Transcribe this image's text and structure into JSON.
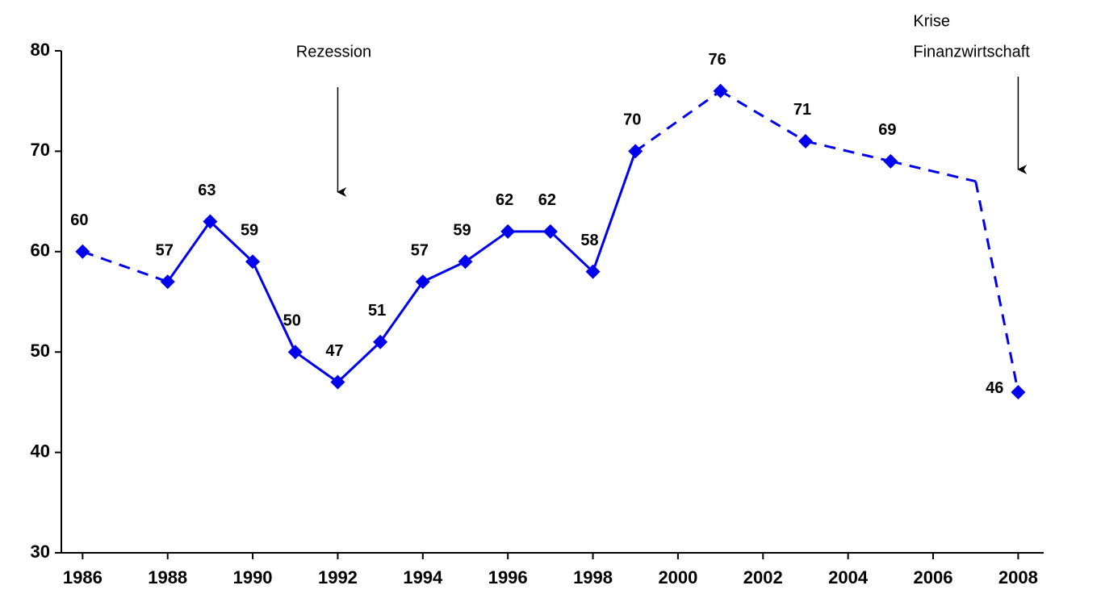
{
  "chart_data": {
    "type": "line",
    "x": [
      1986,
      1988,
      1989,
      1990,
      1991,
      1992,
      1993,
      1994,
      1995,
      1996,
      1997,
      1998,
      1999,
      2001,
      2003,
      2005,
      2007,
      2008
    ],
    "series": [
      {
        "color": "#0000ee",
        "values": [
          60,
          57,
          63,
          59,
          50,
          47,
          51,
          57,
          59,
          62,
          62,
          58,
          70,
          76,
          71,
          69,
          67,
          46
        ],
        "value_labels": [
          "60",
          "57",
          "63",
          "59",
          "50",
          "47",
          "51",
          "57",
          "59",
          "62",
          "62",
          "58",
          "70",
          "76",
          "71",
          "69",
          null,
          "46"
        ]
      }
    ],
    "xlim": [
      1985.5,
      2008.6
    ],
    "xticks": [
      1986,
      1988,
      1990,
      1992,
      1994,
      1996,
      1998,
      2000,
      2002,
      2004,
      2006,
      2008
    ],
    "ylim": [
      30,
      80
    ],
    "yticks": [
      30,
      40,
      50,
      60,
      70,
      80
    ],
    "annotations": [
      {
        "x": 1992,
        "lines": [
          "Rezession"
        ]
      },
      {
        "x": 2008,
        "lines": [
          "Krise",
          "Finanzwirtschaft"
        ]
      }
    ]
  }
}
